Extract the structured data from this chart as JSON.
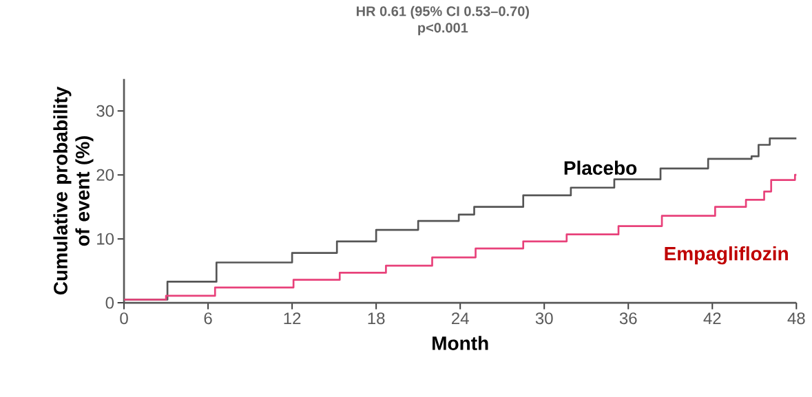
{
  "chart_data": {
    "type": "step",
    "title": "HR 0.61 (95% CI 0.53–0.70)",
    "subtitle": "p<0.001",
    "xlabel": "Month",
    "ylabel": "Cumulative probability of event (%)",
    "xlim": [
      0,
      48
    ],
    "xticks": [
      0,
      6,
      12,
      18,
      24,
      30,
      36,
      42,
      48
    ],
    "ylim": [
      0,
      35
    ],
    "yticks": [
      0,
      10,
      20,
      30
    ],
    "grid": false,
    "marker": "none",
    "line_style": "solid",
    "series": [
      {
        "name": "Placebo",
        "color": "#555555",
        "x": [
          0,
          3.1,
          6.6,
          12,
          15.2,
          18,
          21,
          23.9,
          25,
          28.5,
          31.9,
          35,
          38.3,
          41.7,
          44.8,
          45.3,
          46.1,
          48
        ],
        "values": [
          0.5,
          3.3,
          6.3,
          7.8,
          9.6,
          11.4,
          12.8,
          13.8,
          15.0,
          16.8,
          18.0,
          19.3,
          21.0,
          22.5,
          22.9,
          24.7,
          25.7,
          25.7
        ]
      },
      {
        "name": "Empagliflozin",
        "color": "#e8417a",
        "x": [
          0,
          3,
          6.5,
          12.1,
          15.4,
          18.7,
          22,
          25.1,
          28.5,
          31.6,
          35.3,
          38.4,
          42.2,
          44.4,
          45.7,
          46.2,
          47.9,
          48
        ],
        "values": [
          0.5,
          1.1,
          2.4,
          3.6,
          4.7,
          5.8,
          7.1,
          8.5,
          9.6,
          10.7,
          12.0,
          13.6,
          15.0,
          16.1,
          17.4,
          19.2,
          20.0,
          20.0
        ]
      }
    ]
  }
}
